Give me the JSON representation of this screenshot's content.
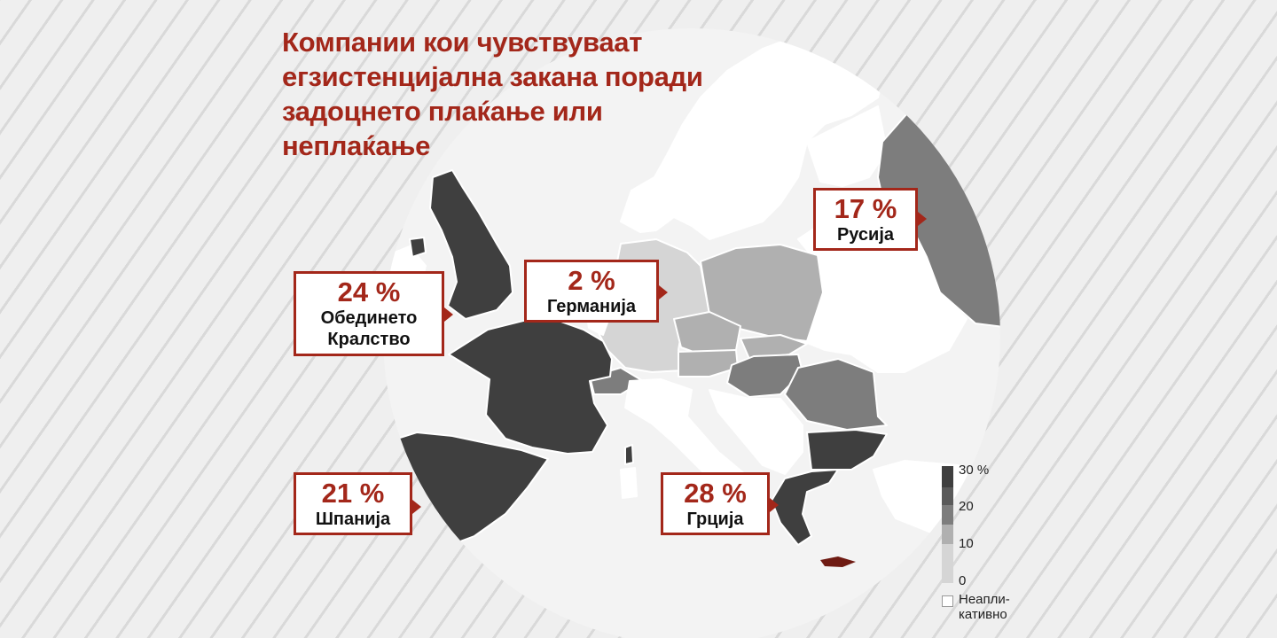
{
  "title": "Компании кои чувствуваат егзистенцијална закана поради задоцнето плаќање или неплаќање",
  "colors": {
    "accent": "#a3271a",
    "scale_30": "#3f3f3f",
    "scale_20": "#7d7d7d",
    "scale_10": "#b0b0b0",
    "scale_0": "#d5d5d5",
    "not_applicable": "#ffffff"
  },
  "callouts": [
    {
      "id": "uk",
      "value": 24,
      "pct": "24 %",
      "name": "Обединето Кралство"
    },
    {
      "id": "de",
      "value": 2,
      "pct": "2 %",
      "name": "Германија"
    },
    {
      "id": "ru",
      "value": 17,
      "pct": "17 %",
      "name": "Русија"
    },
    {
      "id": "es",
      "value": 21,
      "pct": "21 %",
      "name": "Шпанија"
    },
    {
      "id": "gr",
      "value": 28,
      "pct": "28 %",
      "name": "Грција"
    }
  ],
  "legend": {
    "steps": [
      "30 %",
      "20",
      "10",
      "0"
    ],
    "not_applicable": "Неапли-\nкативно"
  }
}
